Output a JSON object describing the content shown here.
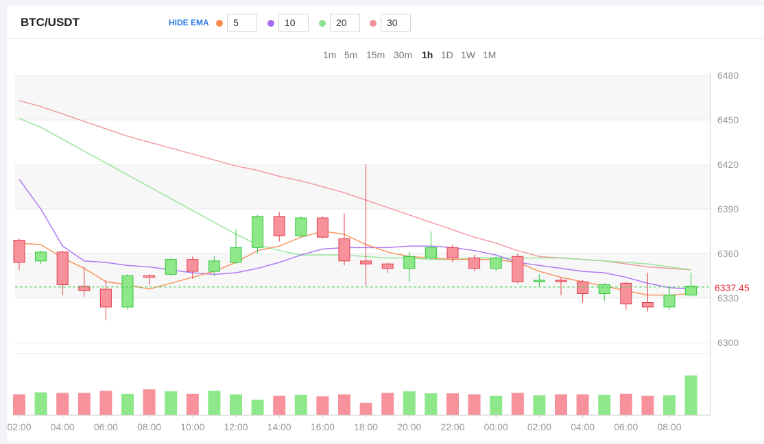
{
  "header": {
    "pair": "BTC/USDT",
    "ema_toggle_label": "HIDE EMA",
    "ema": [
      {
        "value": "5",
        "color": "#f58a4b"
      },
      {
        "value": "10",
        "color": "#a66cf2"
      },
      {
        "value": "20",
        "color": "#8fe28f"
      },
      {
        "value": "30",
        "color": "#f2909a"
      }
    ]
  },
  "timeframes": {
    "items": [
      "1m",
      "5m",
      "15m",
      "30m",
      "1h",
      "1D",
      "1W",
      "1M"
    ],
    "active": "1h"
  },
  "colors": {
    "up": "#8ee88a",
    "up_border": "#32c73c",
    "down": "#f7929c",
    "down_border": "#e33e4e",
    "last_price": "#e8333b",
    "last_line": "#3bd04a"
  },
  "chart_data": {
    "type": "candlestick",
    "y_ticks": [
      6300,
      6330,
      6360,
      6390,
      6420,
      6450,
      6480
    ],
    "ylim": [
      6300,
      6480
    ],
    "x_ticks": [
      "02:00",
      "04:00",
      "06:00",
      "08:00",
      "10:00",
      "12:00",
      "14:00",
      "16:00",
      "18:00",
      "20:00",
      "22:00",
      "00:00",
      "02:00",
      "04:00",
      "06:00",
      "08:00"
    ],
    "last_price": "6337.45",
    "candles": [
      {
        "o": 6369,
        "h": 6370,
        "l": 6349,
        "c": 6354
      },
      {
        "o": 6355,
        "h": 6362,
        "l": 6353,
        "c": 6361
      },
      {
        "o": 6361,
        "h": 6362,
        "l": 6332,
        "c": 6339
      },
      {
        "o": 6338,
        "h": 6351,
        "l": 6331,
        "c": 6335
      },
      {
        "o": 6336,
        "h": 6342,
        "l": 6315,
        "c": 6324
      },
      {
        "o": 6324,
        "h": 6346,
        "l": 6322,
        "c": 6345
      },
      {
        "o": 6345,
        "h": 6346,
        "l": 6339,
        "c": 6344
      },
      {
        "o": 6346,
        "h": 6357,
        "l": 6345,
        "c": 6356
      },
      {
        "o": 6356,
        "h": 6358,
        "l": 6343,
        "c": 6348
      },
      {
        "o": 6348,
        "h": 6358,
        "l": 6345,
        "c": 6355
      },
      {
        "o": 6354,
        "h": 6376,
        "l": 6353,
        "c": 6364
      },
      {
        "o": 6364,
        "h": 6386,
        "l": 6360,
        "c": 6385
      },
      {
        "o": 6385,
        "h": 6388,
        "l": 6368,
        "c": 6372
      },
      {
        "o": 6372,
        "h": 6385,
        "l": 6371,
        "c": 6384
      },
      {
        "o": 6384,
        "h": 6385,
        "l": 6370,
        "c": 6371
      },
      {
        "o": 6370,
        "h": 6387,
        "l": 6352,
        "c": 6355
      },
      {
        "o": 6355,
        "h": 6420,
        "l": 6338,
        "c": 6353
      },
      {
        "o": 6353,
        "h": 6354,
        "l": 6347,
        "c": 6350
      },
      {
        "o": 6350,
        "h": 6361,
        "l": 6341,
        "c": 6358
      },
      {
        "o": 6357,
        "h": 6375,
        "l": 6356,
        "c": 6364
      },
      {
        "o": 6364,
        "h": 6366,
        "l": 6354,
        "c": 6357
      },
      {
        "o": 6357,
        "h": 6359,
        "l": 6348,
        "c": 6350
      },
      {
        "o": 6350,
        "h": 6358,
        "l": 6348,
        "c": 6357
      },
      {
        "o": 6358,
        "h": 6360,
        "l": 6340,
        "c": 6341
      },
      {
        "o": 6341,
        "h": 6346,
        "l": 6338,
        "c": 6342
      },
      {
        "o": 6342,
        "h": 6344,
        "l": 6332,
        "c": 6341
      },
      {
        "o": 6341,
        "h": 6342,
        "l": 6327,
        "c": 6333
      },
      {
        "o": 6333,
        "h": 6340,
        "l": 6328,
        "c": 6339
      },
      {
        "o": 6340,
        "h": 6341,
        "l": 6322,
        "c": 6326
      },
      {
        "o": 6327,
        "h": 6347,
        "l": 6321,
        "c": 6324
      },
      {
        "o": 6324,
        "h": 6338,
        "l": 6322,
        "c": 6332
      },
      {
        "o": 6332,
        "h": 6347,
        "l": 6331,
        "c": 6338
      }
    ],
    "volume": [
      0.42,
      0.46,
      0.45,
      0.45,
      0.49,
      0.43,
      0.52,
      0.48,
      0.43,
      0.49,
      0.42,
      0.31,
      0.39,
      0.41,
      0.38,
      0.42,
      0.25,
      0.45,
      0.48,
      0.44,
      0.44,
      0.42,
      0.39,
      0.45,
      0.4,
      0.42,
      0.42,
      0.41,
      0.43,
      0.39,
      0.4,
      0.8
    ],
    "ema": {
      "5": [
        6367,
        6366,
        6357,
        6350,
        6341,
        6339,
        6336,
        6340,
        6344,
        6348,
        6354,
        6362,
        6365,
        6371,
        6375,
        6373,
        6366,
        6361,
        6358,
        6357,
        6356,
        6356,
        6356,
        6354,
        6348,
        6344,
        6341,
        6338,
        6335,
        6332,
        6332,
        6333
      ],
      "10": [
        6410,
        6390,
        6365,
        6355,
        6354,
        6352,
        6351,
        6349,
        6347,
        6346,
        6347,
        6350,
        6354,
        6359,
        6363,
        6364,
        6364,
        6364,
        6365,
        6365,
        6364,
        6362,
        6359,
        6354,
        6352,
        6350,
        6348,
        6347,
        6344,
        6340,
        6337,
        6336
      ],
      "20": [
        6451,
        6445,
        6437,
        6429,
        6421,
        6413,
        6405,
        6397,
        6389,
        6381,
        6373,
        6366,
        6362,
        6359,
        6359,
        6359,
        6358,
        6357,
        6357,
        6356,
        6356,
        6357,
        6357,
        6357,
        6357,
        6357,
        6356,
        6355,
        6354,
        6353,
        6351,
        6349
      ],
      "30": [
        6463,
        6459,
        6454,
        6449,
        6444,
        6439,
        6435,
        6431,
        6427,
        6423,
        6419,
        6416,
        6412,
        6409,
        6405,
        6401,
        6396,
        6391,
        6386,
        6381,
        6376,
        6371,
        6367,
        6362,
        6358,
        6357,
        6356,
        6355,
        6353,
        6351,
        6350,
        6349
      ]
    }
  }
}
